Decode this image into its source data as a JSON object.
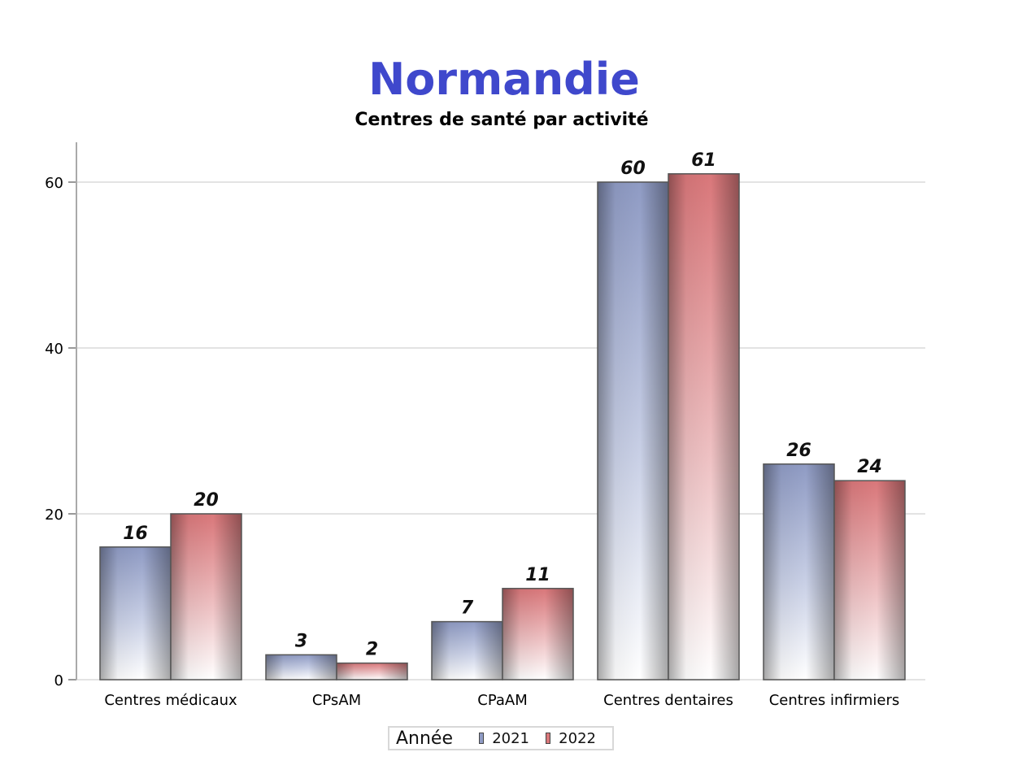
{
  "title": "Normandie",
  "subtitle": "Centres de santé par activité",
  "legend": {
    "title": "Année",
    "items": [
      {
        "label": "2021",
        "color": "#8f9bc4"
      },
      {
        "label": "2022",
        "color": "#d9777a"
      }
    ]
  },
  "chart_data": {
    "type": "bar",
    "title": "Normandie",
    "subtitle": "Centres de santé par activité",
    "categories": [
      "Centres médicaux",
      "CPsAM",
      "CPaAM",
      "Centres dentaires",
      "Centres infirmiers"
    ],
    "series": [
      {
        "name": "2021",
        "values": [
          16,
          3,
          7,
          60,
          26
        ],
        "color": "#8f9bc4"
      },
      {
        "name": "2022",
        "values": [
          20,
          2,
          11,
          61,
          24
        ],
        "color": "#d9777a"
      }
    ],
    "xlabel": "",
    "ylabel": "",
    "ylim": [
      0,
      65
    ],
    "yticks": [
      0,
      20,
      40,
      60
    ],
    "grid": true,
    "legend_title": "Année",
    "legend_position": "bottom",
    "data_labels": true
  }
}
